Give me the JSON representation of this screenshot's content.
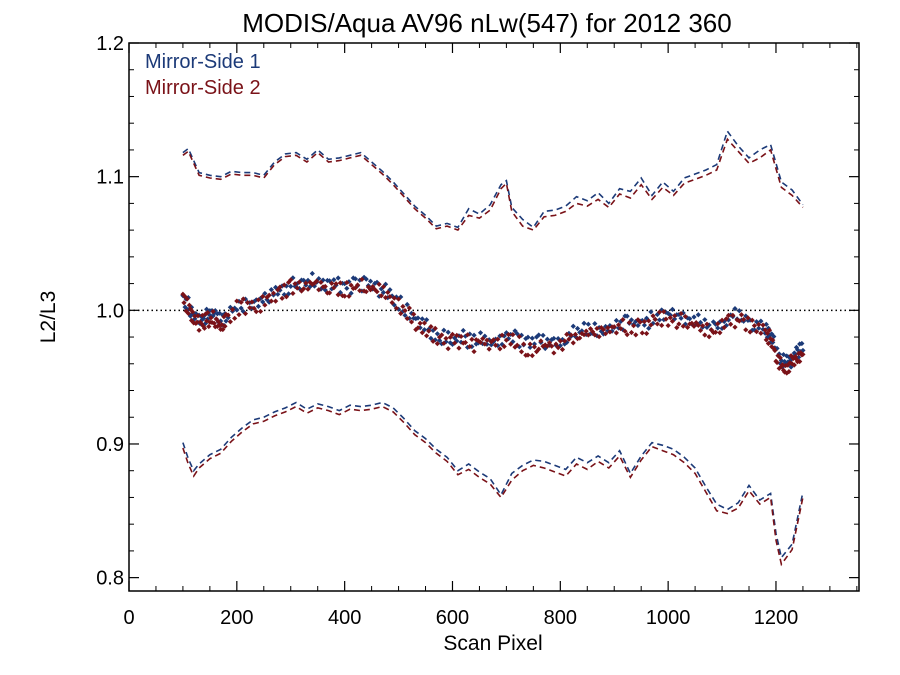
{
  "chart_data": {
    "type": "line",
    "title": "MODIS/Aqua AV96 nLw(547) for 2012 360",
    "xlabel": "Scan Pixel",
    "ylabel": "L2/L3",
    "xlim": [
      0,
      1354
    ],
    "ylim": [
      0.79,
      1.2
    ],
    "xticks": [
      0,
      200,
      400,
      600,
      800,
      1000,
      1200
    ],
    "xtick_labels": [
      "0",
      "200",
      "400",
      "600",
      "800",
      "1000",
      "1200"
    ],
    "yticks": [
      0.8,
      0.9,
      1.0,
      1.1,
      1.2
    ],
    "ytick_labels": [
      "0.8",
      "0.9",
      "1.0",
      "1.1",
      "1.2"
    ],
    "reference_line": 1.0,
    "legend_position": "top-left",
    "colors": {
      "ms1": "#1c3a78",
      "ms2": "#7a1218"
    },
    "series": [
      {
        "name": "Mirror-Side 1",
        "key": "ms1",
        "style": "points",
        "x": [
          100,
          110,
          120,
          130,
          140,
          150,
          160,
          170,
          180,
          200,
          220,
          240,
          260,
          280,
          300,
          320,
          340,
          360,
          380,
          400,
          420,
          440,
          460,
          480,
          500,
          520,
          540,
          560,
          580,
          600,
          620,
          640,
          660,
          680,
          700,
          720,
          740,
          760,
          780,
          800,
          820,
          840,
          860,
          880,
          900,
          920,
          940,
          960,
          980,
          1000,
          1020,
          1040,
          1060,
          1080,
          1100,
          1120,
          1140,
          1160,
          1180,
          1190,
          1200,
          1210,
          1220,
          1230,
          1240,
          1250
        ],
        "y": [
          1.011,
          1.004,
          0.997,
          0.993,
          0.994,
          0.997,
          0.996,
          0.991,
          0.996,
          1.003,
          1.006,
          1.004,
          1.011,
          1.015,
          1.019,
          1.02,
          1.022,
          1.02,
          1.019,
          1.018,
          1.019,
          1.02,
          1.017,
          1.013,
          1.006,
          0.998,
          0.99,
          0.985,
          0.98,
          0.978,
          0.979,
          0.977,
          0.979,
          0.976,
          0.982,
          0.979,
          0.974,
          0.976,
          0.977,
          0.975,
          0.983,
          0.985,
          0.986,
          0.987,
          0.989,
          0.991,
          0.99,
          0.991,
          0.996,
          0.997,
          0.995,
          0.993,
          0.992,
          0.988,
          0.99,
          0.996,
          0.995,
          0.99,
          0.987,
          0.981,
          0.97,
          0.962,
          0.961,
          0.964,
          0.97,
          0.97
        ]
      },
      {
        "name": "Mirror-Side 2",
        "key": "ms2",
        "style": "points",
        "x": [
          100,
          110,
          120,
          130,
          140,
          150,
          160,
          170,
          180,
          200,
          220,
          240,
          260,
          280,
          300,
          320,
          340,
          360,
          380,
          400,
          420,
          440,
          460,
          480,
          500,
          520,
          540,
          560,
          580,
          600,
          620,
          640,
          660,
          680,
          700,
          720,
          740,
          760,
          780,
          800,
          820,
          840,
          860,
          880,
          900,
          920,
          940,
          960,
          980,
          1000,
          1020,
          1040,
          1060,
          1080,
          1100,
          1120,
          1140,
          1160,
          1180,
          1190,
          1200,
          1210,
          1220,
          1230,
          1240,
          1250
        ],
        "y": [
          1.009,
          1.001,
          0.994,
          0.99,
          0.992,
          0.994,
          0.993,
          0.988,
          0.993,
          1.001,
          1.004,
          1.002,
          1.009,
          1.013,
          1.017,
          1.018,
          1.02,
          1.018,
          1.017,
          1.016,
          1.017,
          1.018,
          1.015,
          1.011,
          1.004,
          0.996,
          0.988,
          0.983,
          0.978,
          0.976,
          0.977,
          0.975,
          0.977,
          0.974,
          0.98,
          0.976,
          0.971,
          0.973,
          0.974,
          0.972,
          0.98,
          0.982,
          0.983,
          0.984,
          0.986,
          0.988,
          0.987,
          0.988,
          0.993,
          0.994,
          0.992,
          0.99,
          0.989,
          0.985,
          0.987,
          0.993,
          0.992,
          0.987,
          0.984,
          0.978,
          0.967,
          0.958,
          0.958,
          0.961,
          0.967,
          0.967
        ]
      },
      {
        "name": "Mirror-Side 1",
        "key": "ms1",
        "style": "dashed",
        "x": [
          100,
          110,
          120,
          130,
          150,
          170,
          190,
          210,
          230,
          250,
          270,
          290,
          310,
          330,
          350,
          370,
          390,
          410,
          430,
          450,
          470,
          490,
          510,
          530,
          550,
          570,
          590,
          610,
          630,
          650,
          670,
          690,
          700,
          710,
          730,
          750,
          770,
          790,
          810,
          830,
          850,
          870,
          890,
          910,
          930,
          950,
          970,
          990,
          1010,
          1030,
          1050,
          1070,
          1090,
          1110,
          1130,
          1150,
          1170,
          1190,
          1210,
          1230,
          1250
        ],
        "y": [
          1.118,
          1.121,
          1.112,
          1.103,
          1.101,
          1.1,
          1.104,
          1.103,
          1.103,
          1.101,
          1.111,
          1.117,
          1.118,
          1.113,
          1.12,
          1.113,
          1.114,
          1.116,
          1.118,
          1.111,
          1.104,
          1.096,
          1.087,
          1.078,
          1.071,
          1.063,
          1.065,
          1.062,
          1.076,
          1.072,
          1.079,
          1.094,
          1.097,
          1.077,
          1.068,
          1.062,
          1.074,
          1.075,
          1.078,
          1.085,
          1.082,
          1.088,
          1.08,
          1.091,
          1.089,
          1.099,
          1.086,
          1.096,
          1.089,
          1.099,
          1.102,
          1.105,
          1.109,
          1.134,
          1.123,
          1.114,
          1.12,
          1.124,
          1.096,
          1.09,
          1.079
        ]
      },
      {
        "name": "Mirror-Side 2",
        "key": "ms2",
        "style": "dashed",
        "x": [
          100,
          110,
          120,
          130,
          150,
          170,
          190,
          210,
          230,
          250,
          270,
          290,
          310,
          330,
          350,
          370,
          390,
          410,
          430,
          450,
          470,
          490,
          510,
          530,
          550,
          570,
          590,
          610,
          630,
          650,
          670,
          690,
          700,
          710,
          730,
          750,
          770,
          790,
          810,
          830,
          850,
          870,
          890,
          910,
          930,
          950,
          970,
          990,
          1010,
          1030,
          1050,
          1070,
          1090,
          1110,
          1130,
          1150,
          1170,
          1190,
          1210,
          1230,
          1250
        ],
        "y": [
          1.116,
          1.119,
          1.11,
          1.101,
          1.099,
          1.098,
          1.102,
          1.101,
          1.101,
          1.099,
          1.109,
          1.115,
          1.116,
          1.111,
          1.118,
          1.111,
          1.112,
          1.114,
          1.116,
          1.109,
          1.102,
          1.094,
          1.085,
          1.076,
          1.069,
          1.061,
          1.063,
          1.06,
          1.071,
          1.069,
          1.075,
          1.091,
          1.095,
          1.074,
          1.063,
          1.06,
          1.07,
          1.071,
          1.074,
          1.08,
          1.078,
          1.083,
          1.077,
          1.087,
          1.084,
          1.094,
          1.083,
          1.092,
          1.086,
          1.095,
          1.098,
          1.101,
          1.105,
          1.128,
          1.119,
          1.11,
          1.114,
          1.12,
          1.092,
          1.086,
          1.077
        ]
      },
      {
        "name": "Mirror-Side 1",
        "key": "ms1",
        "style": "dashed",
        "x": [
          100,
          110,
          120,
          130,
          150,
          170,
          190,
          210,
          230,
          250,
          270,
          290,
          310,
          330,
          350,
          370,
          390,
          410,
          430,
          450,
          470,
          490,
          510,
          530,
          550,
          570,
          590,
          610,
          630,
          650,
          670,
          690,
          710,
          730,
          750,
          770,
          790,
          810,
          830,
          850,
          870,
          890,
          910,
          930,
          950,
          970,
          990,
          1010,
          1030,
          1050,
          1070,
          1090,
          1110,
          1130,
          1150,
          1170,
          1190,
          1200,
          1210,
          1230,
          1250
        ],
        "y": [
          0.901,
          0.889,
          0.88,
          0.885,
          0.892,
          0.896,
          0.905,
          0.912,
          0.918,
          0.92,
          0.924,
          0.927,
          0.931,
          0.926,
          0.93,
          0.928,
          0.925,
          0.929,
          0.928,
          0.929,
          0.931,
          0.927,
          0.919,
          0.91,
          0.904,
          0.896,
          0.89,
          0.88,
          0.885,
          0.879,
          0.874,
          0.862,
          0.878,
          0.884,
          0.888,
          0.887,
          0.884,
          0.881,
          0.89,
          0.886,
          0.891,
          0.886,
          0.895,
          0.878,
          0.891,
          0.901,
          0.899,
          0.896,
          0.89,
          0.882,
          0.868,
          0.855,
          0.851,
          0.856,
          0.869,
          0.858,
          0.863,
          0.833,
          0.815,
          0.825,
          0.864
        ]
      },
      {
        "name": "Mirror-Side 2",
        "key": "ms2",
        "style": "dashed",
        "x": [
          100,
          110,
          120,
          130,
          150,
          170,
          190,
          210,
          230,
          250,
          270,
          290,
          310,
          330,
          350,
          370,
          390,
          410,
          430,
          450,
          470,
          490,
          510,
          530,
          550,
          570,
          590,
          610,
          630,
          650,
          670,
          690,
          710,
          730,
          750,
          770,
          790,
          810,
          830,
          850,
          870,
          890,
          910,
          930,
          950,
          970,
          990,
          1010,
          1030,
          1050,
          1070,
          1090,
          1110,
          1130,
          1150,
          1170,
          1190,
          1200,
          1210,
          1230,
          1250
        ],
        "y": [
          0.897,
          0.885,
          0.876,
          0.882,
          0.889,
          0.893,
          0.902,
          0.909,
          0.915,
          0.917,
          0.921,
          0.924,
          0.928,
          0.923,
          0.927,
          0.925,
          0.922,
          0.926,
          0.925,
          0.926,
          0.928,
          0.924,
          0.916,
          0.907,
          0.901,
          0.893,
          0.887,
          0.877,
          0.881,
          0.875,
          0.87,
          0.86,
          0.873,
          0.88,
          0.884,
          0.882,
          0.879,
          0.876,
          0.885,
          0.881,
          0.887,
          0.882,
          0.891,
          0.875,
          0.888,
          0.898,
          0.895,
          0.892,
          0.886,
          0.878,
          0.864,
          0.85,
          0.848,
          0.852,
          0.865,
          0.855,
          0.86,
          0.828,
          0.81,
          0.821,
          0.86
        ]
      }
    ]
  }
}
